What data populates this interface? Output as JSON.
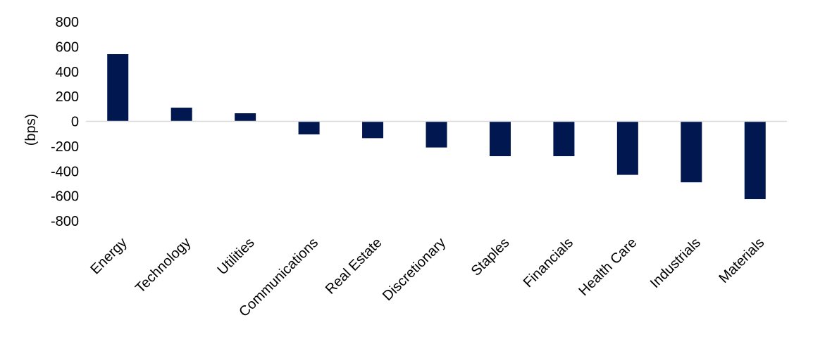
{
  "chart_data": {
    "type": "bar",
    "title": "",
    "xlabel": "",
    "ylabel": "(bps)",
    "categories": [
      "Energy",
      "Technology",
      "Utilities",
      "Communications",
      "Real Estate",
      "Discretionary",
      "Staples",
      "Financials",
      "Health Care",
      "Industrials",
      "Materials"
    ],
    "values": [
      540,
      110,
      65,
      -105,
      -135,
      -210,
      -280,
      -280,
      -430,
      -490,
      -625
    ],
    "ylim": [
      -800,
      800
    ],
    "yticks": [
      800,
      600,
      400,
      200,
      0,
      -200,
      -400,
      -600,
      -800
    ],
    "ytick_labels": [
      "800",
      "600",
      "400",
      "200",
      "0",
      "-200",
      "-400",
      "-600",
      "-800"
    ],
    "grid": false,
    "legend": "none",
    "colors": {
      "bar": "#00174F",
      "zero_line": "#D9D9D9"
    }
  }
}
